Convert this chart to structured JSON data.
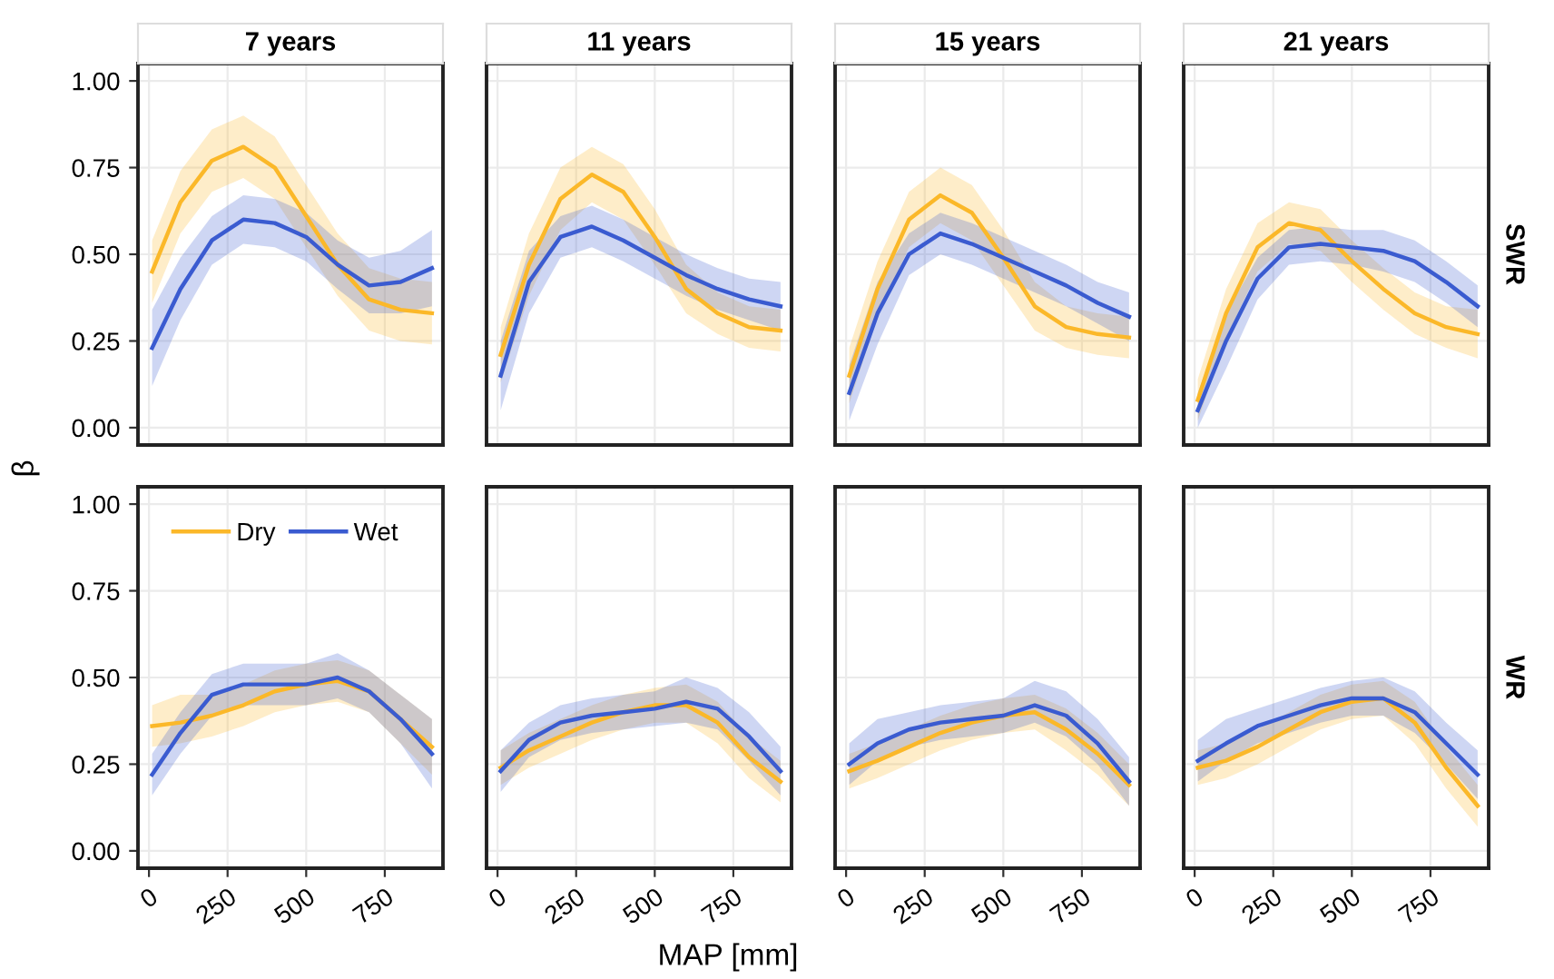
{
  "chart_data": [
    {
      "type": "line",
      "title": "7 years",
      "ylabel": "β",
      "x": [
        10,
        100,
        200,
        300,
        400,
        500,
        600,
        700,
        800,
        900
      ],
      "xlim": [
        -35,
        935
      ],
      "xticks": [
        0,
        250,
        500,
        750
      ],
      "ylim": [
        -0.05,
        1.05
      ],
      "yticks": [
        {
          "value": 0,
          "label": "0.00"
        },
        {
          "value": 0.25,
          "label": "0.25"
        },
        {
          "value": 0.5,
          "label": "0.50"
        },
        {
          "value": 0.75,
          "label": "0.75"
        },
        {
          "value": 1,
          "label": "1.00"
        }
      ],
      "grid": true,
      "tick_labels": "y",
      "series": [
        {
          "color": "#fbb829",
          "values": [
            0.45,
            0.65,
            0.77,
            0.81,
            0.75,
            0.61,
            0.47,
            0.37,
            0.34,
            0.33
          ],
          "lower": [
            0.36,
            0.56,
            0.68,
            0.72,
            0.66,
            0.52,
            0.38,
            0.28,
            0.25,
            0.24
          ],
          "upper": [
            0.54,
            0.74,
            0.86,
            0.9,
            0.84,
            0.7,
            0.56,
            0.46,
            0.43,
            0.42
          ]
        },
        {
          "color": "#3a5bd0",
          "values": [
            0.23,
            0.4,
            0.54,
            0.6,
            0.59,
            0.55,
            0.47,
            0.41,
            0.42,
            0.46
          ],
          "lower": [
            0.12,
            0.31,
            0.47,
            0.53,
            0.52,
            0.48,
            0.4,
            0.33,
            0.33,
            0.35
          ],
          "upper": [
            0.34,
            0.49,
            0.61,
            0.67,
            0.66,
            0.62,
            0.54,
            0.49,
            0.51,
            0.57
          ]
        }
      ]
    },
    {
      "type": "line",
      "title": "11 years",
      "x": [
        10,
        100,
        200,
        300,
        400,
        500,
        600,
        700,
        800,
        900
      ],
      "xlim": [
        -35,
        935
      ],
      "xticks": [
        0,
        250,
        500,
        750
      ],
      "ylim": [
        -0.05,
        1.05
      ],
      "yticks": [
        0,
        0.25,
        0.5,
        0.75,
        1
      ],
      "grid": true,
      "tick_labels": false,
      "series": [
        {
          "color": "#fbb829",
          "values": [
            0.21,
            0.47,
            0.66,
            0.73,
            0.68,
            0.55,
            0.4,
            0.33,
            0.29,
            0.28
          ],
          "lower": [
            0.13,
            0.38,
            0.57,
            0.65,
            0.6,
            0.47,
            0.33,
            0.27,
            0.23,
            0.22
          ],
          "upper": [
            0.29,
            0.56,
            0.75,
            0.81,
            0.76,
            0.63,
            0.47,
            0.39,
            0.35,
            0.34
          ]
        },
        {
          "color": "#3a5bd0",
          "values": [
            0.15,
            0.42,
            0.55,
            0.58,
            0.54,
            0.49,
            0.44,
            0.4,
            0.37,
            0.35
          ],
          "lower": [
            0.05,
            0.33,
            0.49,
            0.52,
            0.48,
            0.43,
            0.38,
            0.34,
            0.31,
            0.28
          ],
          "upper": [
            0.25,
            0.51,
            0.61,
            0.64,
            0.6,
            0.55,
            0.5,
            0.46,
            0.43,
            0.42
          ]
        }
      ]
    },
    {
      "type": "line",
      "title": "15 years",
      "x": [
        10,
        100,
        200,
        300,
        400,
        500,
        600,
        700,
        800,
        900
      ],
      "xlim": [
        -35,
        935
      ],
      "xticks": [
        0,
        250,
        500,
        750
      ],
      "ylim": [
        -0.05,
        1.05
      ],
      "yticks": [
        0,
        0.25,
        0.5,
        0.75,
        1
      ],
      "grid": true,
      "tick_labels": false,
      "series": [
        {
          "color": "#fbb829",
          "values": [
            0.15,
            0.4,
            0.6,
            0.67,
            0.62,
            0.49,
            0.35,
            0.29,
            0.27,
            0.26
          ],
          "lower": [
            0.07,
            0.32,
            0.52,
            0.59,
            0.54,
            0.41,
            0.28,
            0.23,
            0.21,
            0.2
          ],
          "upper": [
            0.23,
            0.48,
            0.68,
            0.75,
            0.7,
            0.57,
            0.42,
            0.35,
            0.33,
            0.32
          ]
        },
        {
          "color": "#3a5bd0",
          "values": [
            0.1,
            0.33,
            0.5,
            0.56,
            0.53,
            0.49,
            0.45,
            0.41,
            0.36,
            0.32
          ],
          "lower": [
            0.02,
            0.24,
            0.44,
            0.5,
            0.47,
            0.43,
            0.39,
            0.35,
            0.3,
            0.25
          ],
          "upper": [
            0.18,
            0.42,
            0.56,
            0.62,
            0.59,
            0.55,
            0.51,
            0.47,
            0.42,
            0.39
          ]
        }
      ]
    },
    {
      "type": "line",
      "title": "21 years",
      "annotations": [
        "SWR"
      ],
      "x": [
        10,
        100,
        200,
        300,
        400,
        500,
        600,
        700,
        800,
        900
      ],
      "xlim": [
        -35,
        935
      ],
      "xticks": [
        0,
        250,
        500,
        750
      ],
      "ylim": [
        -0.05,
        1.05
      ],
      "yticks": [
        0,
        0.25,
        0.5,
        0.75,
        1
      ],
      "grid": true,
      "tick_labels": false,
      "series": [
        {
          "color": "#fbb829",
          "values": [
            0.08,
            0.33,
            0.52,
            0.59,
            0.57,
            0.48,
            0.4,
            0.33,
            0.29,
            0.27
          ],
          "lower": [
            0.02,
            0.26,
            0.45,
            0.53,
            0.51,
            0.42,
            0.34,
            0.27,
            0.23,
            0.2
          ],
          "upper": [
            0.14,
            0.4,
            0.59,
            0.65,
            0.63,
            0.54,
            0.46,
            0.39,
            0.35,
            0.34
          ]
        },
        {
          "color": "#3a5bd0",
          "values": [
            0.05,
            0.25,
            0.43,
            0.52,
            0.53,
            0.52,
            0.51,
            0.48,
            0.42,
            0.35
          ],
          "lower": [
            0.0,
            0.17,
            0.37,
            0.47,
            0.48,
            0.47,
            0.45,
            0.42,
            0.36,
            0.29
          ],
          "upper": [
            0.1,
            0.33,
            0.49,
            0.57,
            0.58,
            0.57,
            0.57,
            0.54,
            0.48,
            0.41
          ]
        }
      ]
    },
    {
      "type": "line",
      "x": [
        10,
        100,
        200,
        300,
        400,
        500,
        600,
        700,
        800,
        900
      ],
      "xlim": [
        -35,
        935
      ],
      "xticks": [
        0,
        250,
        500,
        750
      ],
      "ylim": [
        -0.05,
        1.05
      ],
      "yticks": [
        {
          "value": 0,
          "label": "0.00"
        },
        {
          "value": 0.25,
          "label": "0.25"
        },
        {
          "value": 0.5,
          "label": "0.50"
        },
        {
          "value": 0.75,
          "label": "0.75"
        },
        {
          "value": 1,
          "label": "1.00"
        }
      ],
      "grid": true,
      "legend": "top left",
      "series": [
        {
          "name": "Dry",
          "color": "#fbb829",
          "values": [
            0.36,
            0.37,
            0.39,
            0.42,
            0.46,
            0.48,
            0.49,
            0.46,
            0.38,
            0.3
          ],
          "lower": [
            0.3,
            0.31,
            0.33,
            0.36,
            0.4,
            0.42,
            0.43,
            0.4,
            0.31,
            0.22
          ],
          "upper": [
            0.42,
            0.45,
            0.45,
            0.48,
            0.52,
            0.54,
            0.55,
            0.52,
            0.45,
            0.38
          ]
        },
        {
          "name": "Wet",
          "color": "#3a5bd0",
          "values": [
            0.22,
            0.34,
            0.45,
            0.48,
            0.48,
            0.48,
            0.5,
            0.46,
            0.38,
            0.28
          ],
          "lower": [
            0.16,
            0.28,
            0.39,
            0.42,
            0.42,
            0.42,
            0.44,
            0.4,
            0.31,
            0.18
          ],
          "upper": [
            0.28,
            0.4,
            0.51,
            0.54,
            0.54,
            0.54,
            0.57,
            0.52,
            0.45,
            0.38
          ]
        }
      ]
    },
    {
      "type": "line",
      "xlabel": "MAP [mm]",
      "x": [
        10,
        100,
        200,
        300,
        400,
        500,
        600,
        700,
        800,
        900
      ],
      "xlim": [
        -35,
        935
      ],
      "xticks": [
        0,
        250,
        500,
        750
      ],
      "ylim": [
        -0.05,
        1.05
      ],
      "yticks": [
        0,
        0.25,
        0.5,
        0.75,
        1
      ],
      "grid": true,
      "tick_labels": "x",
      "series": [
        {
          "color": "#fbb829",
          "values": [
            0.24,
            0.29,
            0.33,
            0.37,
            0.4,
            0.42,
            0.42,
            0.37,
            0.27,
            0.2
          ],
          "lower": [
            0.19,
            0.24,
            0.28,
            0.32,
            0.35,
            0.37,
            0.37,
            0.31,
            0.21,
            0.14
          ],
          "upper": [
            0.29,
            0.34,
            0.38,
            0.42,
            0.45,
            0.47,
            0.48,
            0.43,
            0.33,
            0.26
          ]
        },
        {
          "color": "#3a5bd0",
          "values": [
            0.23,
            0.32,
            0.37,
            0.39,
            0.4,
            0.41,
            0.43,
            0.41,
            0.33,
            0.23
          ],
          "lower": [
            0.17,
            0.27,
            0.32,
            0.34,
            0.35,
            0.36,
            0.37,
            0.35,
            0.26,
            0.16
          ],
          "upper": [
            0.29,
            0.37,
            0.42,
            0.44,
            0.45,
            0.46,
            0.5,
            0.47,
            0.4,
            0.3
          ]
        }
      ]
    },
    {
      "type": "line",
      "x": [
        10,
        100,
        200,
        300,
        400,
        500,
        600,
        700,
        800,
        900
      ],
      "xlim": [
        -35,
        935
      ],
      "xticks": [
        0,
        250,
        500,
        750
      ],
      "ylim": [
        -0.05,
        1.05
      ],
      "yticks": [
        0,
        0.25,
        0.5,
        0.75,
        1
      ],
      "grid": true,
      "tick_labels": "x",
      "series": [
        {
          "color": "#fbb829",
          "values": [
            0.23,
            0.26,
            0.3,
            0.34,
            0.37,
            0.39,
            0.4,
            0.35,
            0.28,
            0.19
          ],
          "lower": [
            0.18,
            0.21,
            0.25,
            0.29,
            0.32,
            0.34,
            0.35,
            0.29,
            0.22,
            0.13
          ],
          "upper": [
            0.28,
            0.31,
            0.35,
            0.39,
            0.42,
            0.44,
            0.45,
            0.41,
            0.34,
            0.25
          ]
        },
        {
          "color": "#3a5bd0",
          "values": [
            0.25,
            0.31,
            0.35,
            0.37,
            0.38,
            0.39,
            0.42,
            0.39,
            0.31,
            0.2
          ],
          "lower": [
            0.19,
            0.26,
            0.3,
            0.32,
            0.33,
            0.34,
            0.37,
            0.33,
            0.25,
            0.13
          ],
          "upper": [
            0.31,
            0.38,
            0.4,
            0.42,
            0.43,
            0.44,
            0.49,
            0.46,
            0.38,
            0.27
          ]
        }
      ]
    },
    {
      "type": "line",
      "annotations": [
        "WR"
      ],
      "x": [
        10,
        100,
        200,
        300,
        400,
        500,
        600,
        700,
        800,
        900
      ],
      "xlim": [
        -35,
        935
      ],
      "xticks": [
        0,
        250,
        500,
        750
      ],
      "ylim": [
        -0.05,
        1.05
      ],
      "yticks": [
        0,
        0.25,
        0.5,
        0.75,
        1
      ],
      "grid": true,
      "tick_labels": "x",
      "series": [
        {
          "color": "#fbb829",
          "values": [
            0.24,
            0.26,
            0.3,
            0.35,
            0.4,
            0.43,
            0.44,
            0.37,
            0.24,
            0.13
          ],
          "lower": [
            0.19,
            0.21,
            0.25,
            0.3,
            0.35,
            0.38,
            0.39,
            0.31,
            0.18,
            0.07
          ],
          "upper": [
            0.29,
            0.31,
            0.35,
            0.4,
            0.45,
            0.48,
            0.49,
            0.43,
            0.3,
            0.19
          ]
        },
        {
          "color": "#3a5bd0",
          "values": [
            0.26,
            0.31,
            0.36,
            0.39,
            0.42,
            0.44,
            0.44,
            0.4,
            0.31,
            0.22
          ],
          "lower": [
            0.2,
            0.26,
            0.31,
            0.34,
            0.37,
            0.39,
            0.39,
            0.34,
            0.25,
            0.15
          ],
          "upper": [
            0.32,
            0.38,
            0.41,
            0.44,
            0.47,
            0.49,
            0.5,
            0.46,
            0.37,
            0.29
          ]
        }
      ]
    }
  ]
}
